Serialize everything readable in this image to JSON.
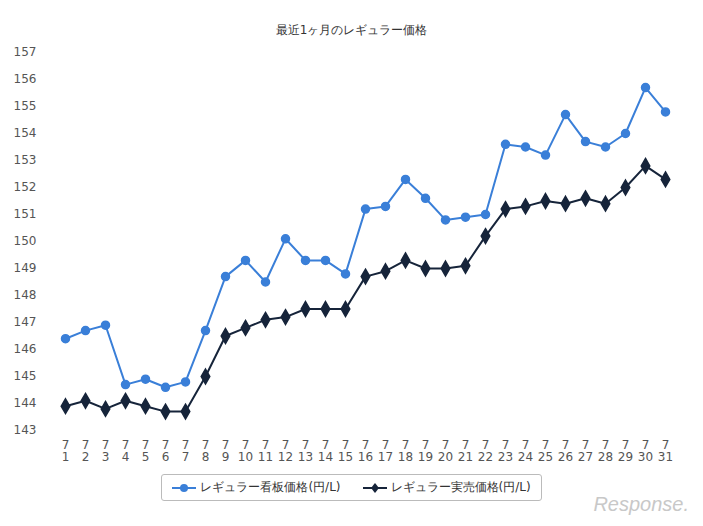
{
  "chart_data": {
    "type": "line",
    "title": "最近1ヶ月のレギュラー価格",
    "categories": [
      "7\n1",
      "7\n2",
      "7\n3",
      "7\n4",
      "7\n5",
      "7\n6",
      "7\n7",
      "7\n8",
      "7\n9",
      "7\n10",
      "7\n11",
      "7\n12",
      "7\n13",
      "7\n14",
      "7\n15",
      "7\n16",
      "7\n17",
      "7\n18",
      "7\n19",
      "7\n20",
      "7\n21",
      "7\n22",
      "7\n23",
      "7\n24",
      "7\n25",
      "7\n26",
      "7\n27",
      "7\n28",
      "7\n29",
      "7\n30",
      "7\n31"
    ],
    "series": [
      {
        "name": "レギュラー看板価格(円/L)",
        "color": "#3a7fd8",
        "marker": "circle",
        "values": [
          146.4,
          146.7,
          146.9,
          144.7,
          144.9,
          144.6,
          144.8,
          146.7,
          148.7,
          149.3,
          148.5,
          150.1,
          149.3,
          149.3,
          148.8,
          151.2,
          151.3,
          152.3,
          151.6,
          150.8,
          150.9,
          151.0,
          153.6,
          153.5,
          153.2,
          154.7,
          153.7,
          153.5,
          154.0,
          155.7,
          154.8
        ]
      },
      {
        "name": "レギュラー実売価格(円/L)",
        "color": "#16243a",
        "marker": "diamond",
        "values": [
          143.9,
          144.1,
          143.8,
          144.1,
          143.9,
          143.7,
          143.7,
          145.0,
          146.5,
          146.8,
          147.1,
          147.2,
          147.5,
          147.5,
          147.5,
          148.7,
          148.9,
          149.3,
          149.0,
          149.0,
          149.1,
          150.2,
          151.2,
          151.3,
          151.5,
          151.4,
          151.6,
          151.4,
          152.0,
          152.8,
          152.3
        ]
      }
    ],
    "ylim": [
      143,
      157
    ],
    "yticks": [
      143,
      144,
      145,
      146,
      147,
      148,
      149,
      150,
      151,
      152,
      153,
      154,
      155,
      156,
      157
    ],
    "grid": false,
    "legend": "bottom",
    "annotations": [
      "Response."
    ]
  }
}
